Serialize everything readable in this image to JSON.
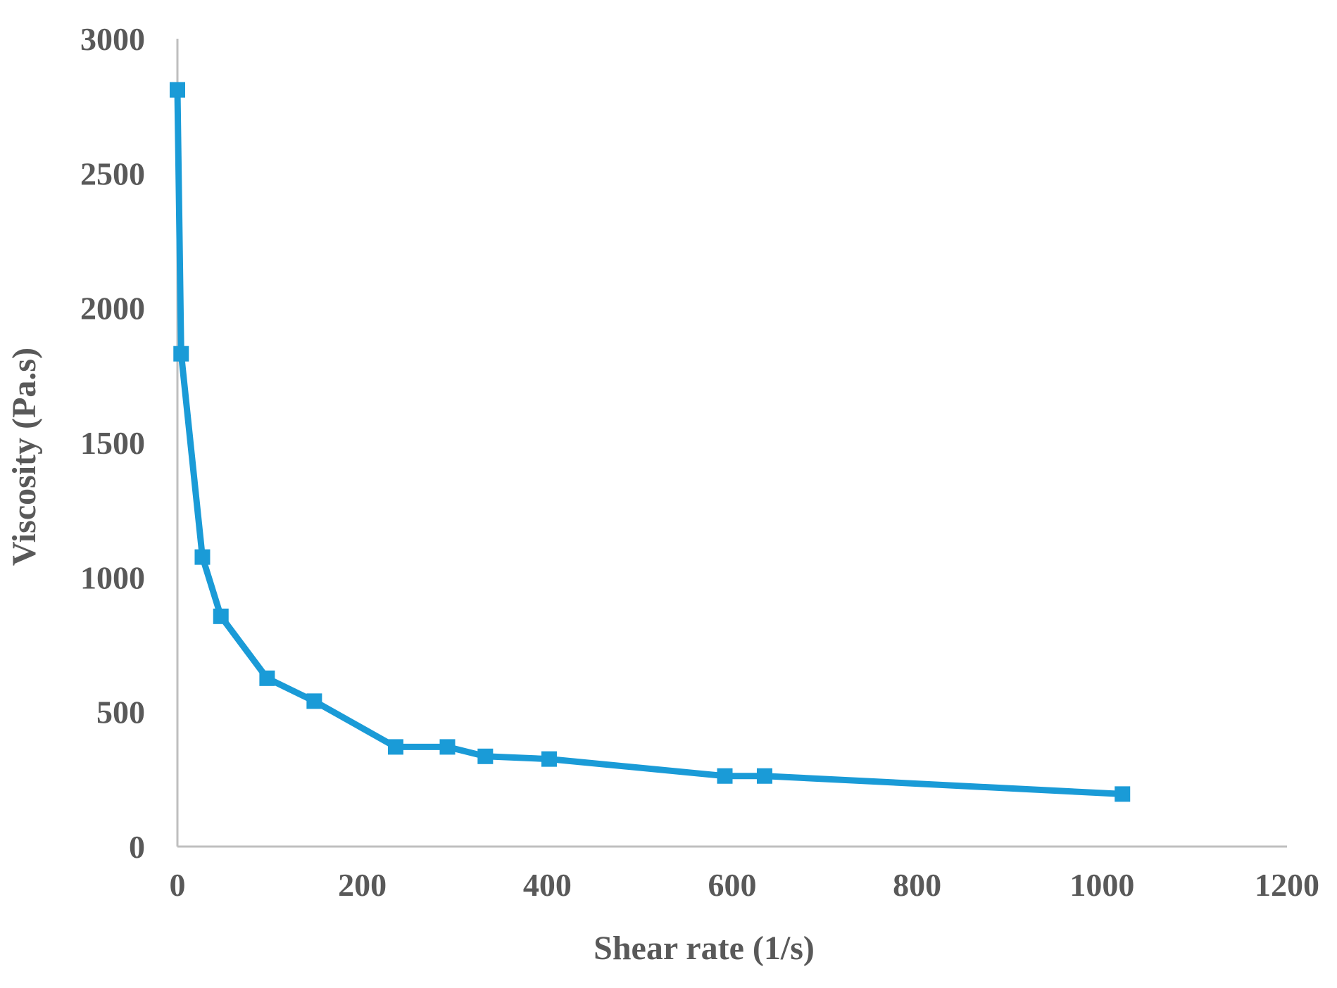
{
  "chart_data": {
    "type": "line",
    "title": "",
    "xlabel": "Shear rate (1/s)",
    "ylabel": "Viscosity (Pa.s)",
    "xlim": [
      0,
      1200
    ],
    "ylim": [
      0,
      3000
    ],
    "xticks": [
      "0",
      "200",
      "400",
      "600",
      "800",
      "1000",
      "1200"
    ],
    "yticks": [
      "0",
      "500",
      "1000",
      "1500",
      "2000",
      "2500",
      "3000"
    ],
    "grid": false,
    "legend": false,
    "series": [
      {
        "color": "#1a9bd7",
        "marker": "square",
        "x": [
          0,
          4,
          27,
          47,
          97,
          148,
          236,
          292,
          333,
          402,
          592,
          635,
          1022
        ],
        "y": [
          2810,
          1830,
          1075,
          855,
          625,
          540,
          370,
          370,
          335,
          325,
          262,
          262,
          195
        ]
      }
    ]
  }
}
